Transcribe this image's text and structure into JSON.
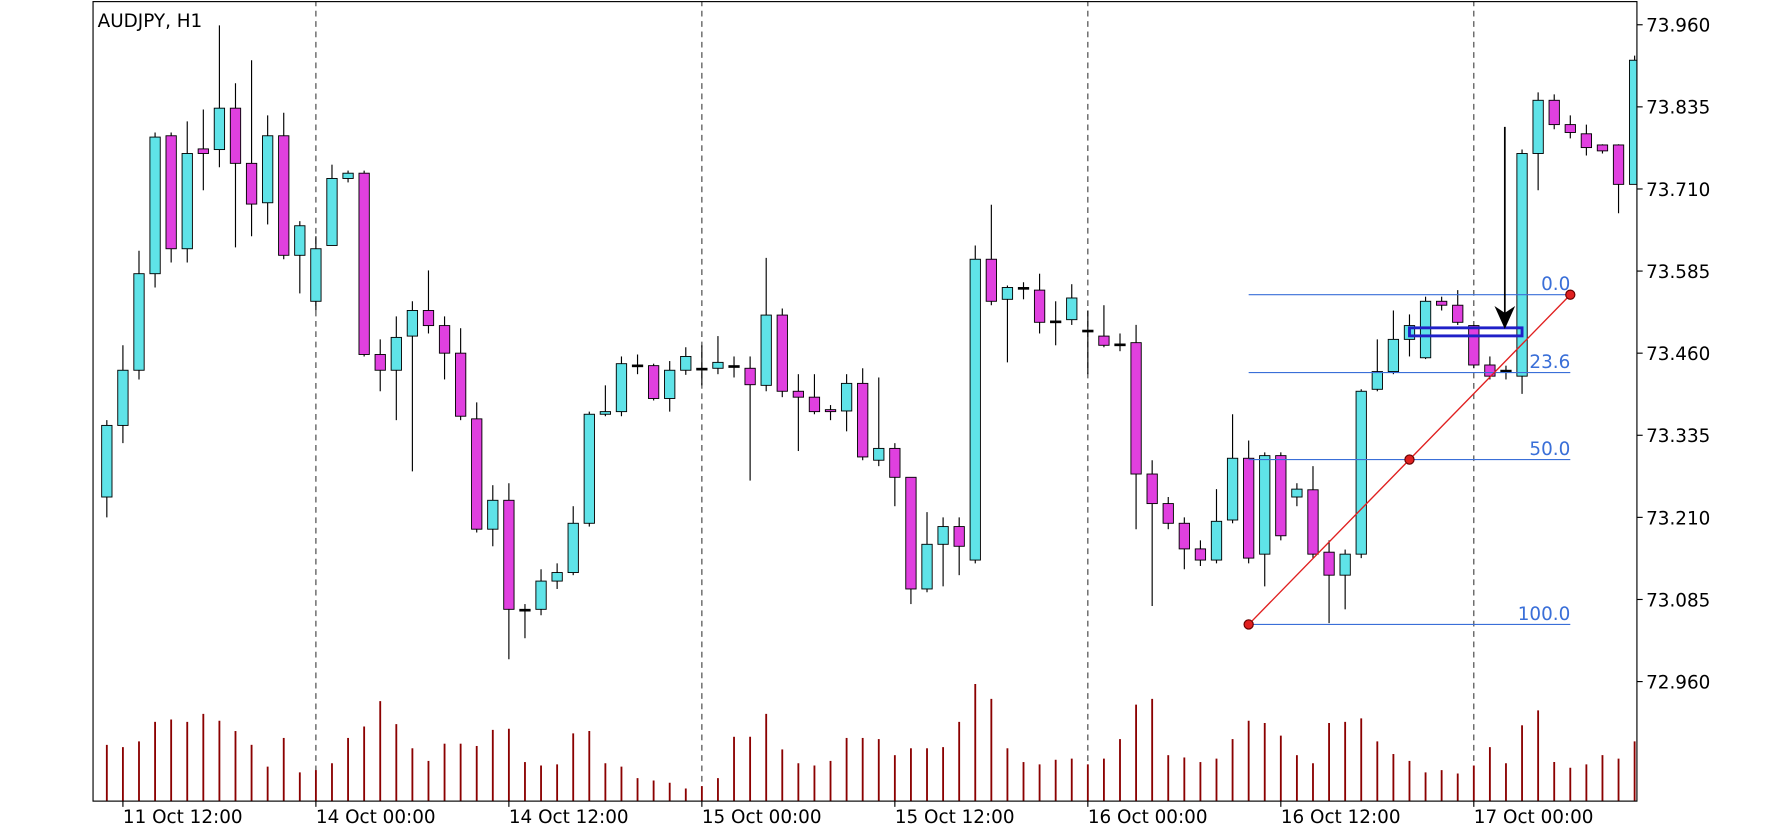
{
  "chart_data": {
    "type": "candlestick",
    "title": "AUDJPY, H1",
    "categories": [
      null,
      "11 Oct 12:00",
      null,
      null,
      null,
      null,
      null,
      null,
      null,
      null,
      null,
      null,
      null,
      "14 Oct 00:00",
      null,
      null,
      null,
      null,
      null,
      null,
      null,
      null,
      null,
      null,
      null,
      "14 Oct 12:00",
      null,
      null,
      null,
      null,
      null,
      null,
      null,
      null,
      null,
      null,
      null,
      "15 Oct 00:00",
      null,
      null,
      null,
      null,
      null,
      null,
      null,
      null,
      null,
      null,
      null,
      "15 Oct 12:00",
      null,
      null,
      null,
      null,
      null,
      null,
      null,
      null,
      null,
      null,
      null,
      "16 Oct 00:00",
      null,
      null,
      null,
      null,
      null,
      null,
      null,
      null,
      null,
      null,
      null,
      "16 Oct 12:00",
      null,
      null,
      null,
      null,
      null,
      null,
      null,
      null,
      null,
      null,
      null,
      "17 Oct 00:00",
      null,
      null,
      null,
      null,
      null,
      null,
      null,
      null,
      null,
      null
    ],
    "open": [
      73.241,
      73.35,
      73.434,
      73.581,
      73.791,
      73.619,
      73.771,
      73.77,
      73.833,
      73.749,
      73.689,
      73.791,
      73.609,
      73.539,
      73.624,
      73.726,
      73.734,
      73.458,
      73.434,
      73.486,
      73.525,
      73.502,
      73.46,
      73.36,
      73.192,
      73.236,
      73.07,
      73.07,
      73.113,
      73.126,
      73.201,
      73.367,
      73.371,
      73.442,
      73.441,
      73.391,
      73.434,
      73.437,
      73.437,
      73.441,
      73.437,
      73.411,
      73.518,
      73.402,
      73.393,
      73.374,
      73.372,
      73.414,
      73.297,
      73.315,
      73.271,
      73.101,
      73.169,
      73.196,
      73.145,
      73.603,
      73.542,
      73.56,
      73.556,
      73.509,
      73.511,
      73.495,
      73.486,
      73.474,
      73.476,
      73.276,
      73.231,
      73.201,
      73.162,
      73.145,
      73.206,
      73.3,
      73.154,
      73.304,
      73.241,
      73.252,
      73.157,
      73.122,
      73.154,
      73.405,
      73.432,
      73.481,
      73.453,
      73.539,
      73.533,
      73.502,
      73.442,
      73.434,
      73.425,
      73.764,
      73.845,
      73.808,
      73.794,
      73.777,
      73.777,
      73.717
    ],
    "high": [
      73.358,
      73.472,
      73.616,
      73.796,
      73.796,
      73.813,
      73.831,
      73.959,
      73.871,
      73.906,
      73.822,
      73.826,
      73.661,
      73.638,
      73.747,
      73.738,
      73.738,
      73.481,
      73.516,
      73.539,
      73.586,
      73.516,
      73.498,
      73.385,
      73.259,
      73.262,
      73.078,
      73.131,
      73.14,
      73.227,
      73.371,
      73.411,
      73.455,
      73.458,
      73.444,
      73.448,
      73.469,
      73.472,
      73.486,
      73.455,
      73.455,
      73.605,
      73.528,
      73.428,
      73.428,
      73.381,
      73.428,
      73.437,
      73.423,
      73.323,
      73.271,
      73.218,
      73.21,
      73.21,
      73.624,
      73.686,
      73.563,
      73.568,
      73.581,
      73.539,
      73.565,
      73.525,
      73.533,
      73.49,
      73.503,
      73.297,
      73.241,
      73.21,
      73.175,
      73.253,
      73.367,
      73.327,
      73.309,
      73.309,
      73.262,
      73.288,
      73.175,
      73.161,
      73.405,
      73.481,
      73.525,
      73.519,
      73.546,
      73.546,
      73.556,
      73.503,
      73.455,
      73.441,
      73.77,
      73.857,
      73.854,
      73.822,
      73.808,
      73.778,
      73.778,
      73.913
    ],
    "low": [
      73.21,
      73.323,
      73.42,
      73.56,
      73.598,
      73.598,
      73.708,
      73.743,
      73.621,
      73.638,
      73.656,
      73.603,
      73.551,
      73.525,
      73.624,
      73.72,
      73.455,
      73.402,
      73.358,
      73.28,
      73.49,
      73.42,
      73.358,
      73.187,
      73.166,
      72.994,
      73.026,
      73.061,
      73.101,
      73.122,
      73.196,
      73.364,
      73.364,
      73.428,
      73.388,
      73.371,
      73.427,
      73.411,
      73.428,
      73.423,
      73.266,
      73.402,
      73.393,
      73.311,
      73.367,
      73.358,
      73.341,
      73.297,
      73.288,
      73.227,
      73.078,
      73.096,
      73.105,
      73.122,
      73.14,
      73.533,
      73.446,
      73.542,
      73.49,
      73.472,
      73.503,
      73.428,
      73.469,
      73.463,
      73.192,
      73.075,
      73.192,
      73.131,
      73.136,
      73.14,
      73.201,
      73.14,
      73.105,
      73.175,
      73.227,
      73.148,
      73.049,
      73.07,
      73.148,
      73.402,
      73.428,
      73.455,
      73.451,
      73.525,
      73.503,
      73.437,
      73.42,
      73.42,
      73.398,
      73.708,
      73.801,
      73.787,
      73.761,
      73.764,
      73.673,
      73.717
    ],
    "close": [
      73.35,
      73.434,
      73.581,
      73.789,
      73.619,
      73.764,
      73.764,
      73.833,
      73.749,
      73.687,
      73.791,
      73.609,
      73.654,
      73.619,
      73.726,
      73.734,
      73.458,
      73.434,
      73.484,
      73.525,
      73.502,
      73.46,
      73.364,
      73.192,
      73.236,
      73.07,
      73.07,
      73.113,
      73.126,
      73.201,
      73.367,
      73.371,
      73.444,
      73.442,
      73.391,
      73.434,
      73.455,
      73.437,
      73.446,
      73.441,
      73.412,
      73.518,
      73.402,
      73.393,
      73.371,
      73.371,
      73.414,
      73.302,
      73.315,
      73.271,
      73.101,
      73.169,
      73.196,
      73.166,
      73.603,
      73.539,
      73.56,
      73.56,
      73.507,
      73.509,
      73.544,
      73.495,
      73.472,
      73.474,
      73.276,
      73.231,
      73.201,
      73.162,
      73.145,
      73.204,
      73.3,
      73.148,
      73.304,
      73.182,
      73.253,
      73.154,
      73.122,
      73.154,
      73.402,
      73.432,
      73.481,
      73.502,
      73.539,
      73.533,
      73.507,
      73.442,
      73.425,
      73.434,
      73.764,
      73.845,
      73.808,
      73.796,
      73.773,
      73.768,
      73.717,
      73.906
    ],
    "volume": [
      49,
      47,
      52,
      69,
      71,
      69,
      76,
      70,
      61,
      49,
      30,
      55,
      25,
      27,
      33,
      55,
      65,
      87,
      67,
      46,
      35,
      50,
      50,
      48,
      62,
      63,
      34,
      31,
      32,
      59,
      61,
      33,
      30,
      20,
      18,
      16,
      11,
      13,
      20,
      56,
      56,
      76,
      45,
      33,
      31,
      35,
      55,
      55,
      54,
      40,
      46,
      46,
      47,
      69,
      102,
      89,
      46,
      34,
      32,
      36,
      37,
      32,
      37,
      54,
      84,
      89,
      40,
      38,
      34,
      37,
      54,
      70,
      68,
      57,
      40,
      33,
      68,
      69,
      72,
      52,
      41,
      35,
      25,
      27,
      24,
      31,
      47,
      33,
      66,
      79,
      34,
      29,
      32,
      40,
      37,
      52
    ],
    "up_color": "#5fe3e8",
    "down_color": "#e040df",
    "doji_color": "#000000",
    "volume_color": "#8b0000",
    "ylim": [
      72.778,
      73.997
    ],
    "yticks": [
      {
        "value": 73.96,
        "label": "73.960"
      },
      73.835,
      {
        "value": 73.71,
        "label": "73.710"
      },
      73.585,
      {
        "value": 73.46,
        "label": "73.460"
      },
      73.335,
      {
        "value": 73.21,
        "label": "73.210"
      },
      73.085,
      {
        "value": 72.96,
        "label": "72.960"
      }
    ],
    "vlim": [
      0,
      110
    ],
    "fib": {
      "from": {
        "candle": 71,
        "price": 73.047
      },
      "to": {
        "candle": 91,
        "price": 73.549
      },
      "levels": [
        {
          "value": 0,
          "label": "0.0"
        },
        23.6,
        {
          "value": 50,
          "label": "50.0"
        },
        {
          "value": 100,
          "label": "100.0"
        }
      ],
      "color": "#3a6fd8",
      "trend_color": "#e02020"
    }
  }
}
